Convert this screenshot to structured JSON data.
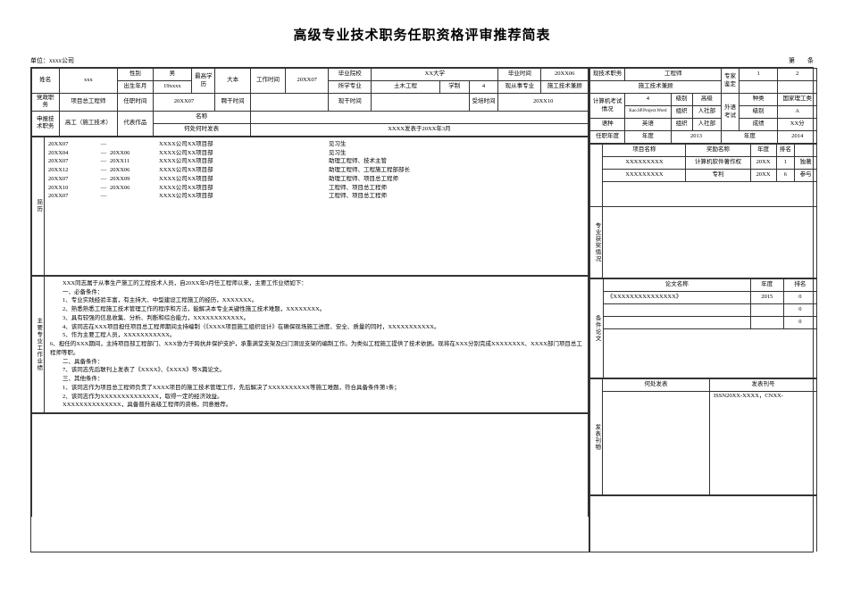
{
  "title": "高级专业技术职务任职资格评审推荐简表",
  "meta": {
    "unit_label": "单位：",
    "unit_value": "xxxx公司",
    "page_label_left": "第",
    "page_label_right": "条"
  },
  "header": {
    "name_label": "姓名",
    "name": "xxx",
    "gender_label": "性别",
    "gender": "男",
    "edu_label": "最高学历",
    "edu": "大本",
    "work_time_label": "工作时间",
    "work_time": "20XX07",
    "grad_school_label": "毕业院校",
    "grad_school": "XX大学",
    "grad_time_label": "毕业时间",
    "grad_time": "20XX06",
    "cur_title_label": "现技术职务",
    "cur_title": "工程师",
    "expert_label": "专家鉴定",
    "expert_col1": "1",
    "expert_col2": "2",
    "birth_label": "出生年月",
    "birth": "19xxxx",
    "major_label": "所学专业",
    "major": "土木工程",
    "sys_label": "学制",
    "sys": "4",
    "cur_work_label": "现从事专业",
    "cur_work": "施工技术兼顾",
    "cur_pos_label": "党政职务",
    "cur_pos": "项目总工程师",
    "appoint_label": "任职时间",
    "appoint": "20XX07",
    "hire_label": "聘干时间",
    "hire": "",
    "hire_end_label": "现干时间",
    "hire_end": "",
    "train_label": "受培时间",
    "train": "20XX10",
    "comp_exam_label": "计算机考试情况",
    "comp_exam_lev_label": "级别",
    "comp_exam_lev": "高级",
    "comp_num": "4",
    "lang_section_label": "外语考试",
    "lang_kind_label": "种类",
    "lang_kind": "国家理工类",
    "lang_lev_label": "级别",
    "lang_lev": "A",
    "apply_label": "申报技术职务",
    "apply": "高工（施工技术）",
    "rep_work_label": "代表作品",
    "rep_work_name_label": "名称",
    "rep_work_when_label": "何处何时发表",
    "rep_work_when": "XXXX发表于20XX年3月",
    "proj_label": "Kao.SP.Project.Word",
    "pass_dept_label": "组织",
    "pass_dept": "人社部",
    "lang_name_label": "语种",
    "lang_name": "英语",
    "lang_org_label": "组织",
    "lang_org": "人社部",
    "year_label": "年度",
    "year1": "2013",
    "score_label": "成绩",
    "score": "XX分",
    "year2_label": "年度",
    "year2": "2014",
    "cert_label": "任职年度"
  },
  "resume_label": "简历",
  "resume": [
    {
      "from": "20XX07",
      "to": "—",
      "dept": "XXXX公司XX项目部",
      "pos": "见习生"
    },
    {
      "from": "20XX04",
      "to": "—",
      "end": "20XX06",
      "dept": "XXXX公司XX项目部",
      "pos": "见习生"
    },
    {
      "from": "20XX07",
      "to": "—",
      "end": "20XX11",
      "dept": "XXXX公司XX项目部",
      "pos": "助理工程师、技术主管"
    },
    {
      "from": "20XX12",
      "to": "—",
      "end": "20XX06",
      "dept": "XXXX公司XX项目部",
      "pos": "助理工程师、工程施工程部部长"
    },
    {
      "from": "20XX07",
      "to": "—",
      "end": "20XX09",
      "dept": "XXXX公司XX项目部",
      "pos": "助理工程师、项目总工程师"
    },
    {
      "from": "20XX10",
      "to": "—",
      "end": "20XX06",
      "dept": "XXXX公司XX项目部",
      "pos": "工程师、项目总工程师"
    },
    {
      "from": "20XX07",
      "to": "—",
      "end": "",
      "dept": "XXXX公司XX项目部",
      "pos": "工程师、项目总工程师"
    }
  ],
  "right_projects": {
    "col_proj": "项目名称",
    "col_award": "奖励名称",
    "col_year": "年度",
    "col_rank": "排名",
    "rows": [
      {
        "proj": "XXXXXXXXX",
        "award": "计算机软件著作权",
        "year": "20XX",
        "rank": "1",
        "note": "独著"
      },
      {
        "proj": "XXXXXXXXX",
        "award": "专利",
        "year": "20XX",
        "rank": "6",
        "note": "参与"
      }
    ]
  },
  "achiev_label": "专业获奖情况",
  "assess_label": "主要专业工作业绩",
  "assess": {
    "intro": "XXX同志属于从事生产施工的工程技术人员，自20XX年9月任工程师以来，主要工作业绩如下：",
    "sec1": "一、必备条件：",
    "l1": "1、专业实践经验丰富，有主持大、中型建设工程施工的经历，XXXXXXX。",
    "l2": "2、熟悉熟悉工程施工技术管理工作的程序和方法，能解决本专业关键性施工技术难题，XXXXXXXX。",
    "l3": "3、具有较强的信息收集、分析、判断和综合能力，XXXXXXXXXXXX。",
    "l4": "4、该同志在XXX项目担任项目总工程师期间主持编制（《XXXX项目施工组织设计》在确保现场施工进度、安全、质量的同时，XXXXXXXXXXX。",
    "l5": "5、作为主要工程人员，XXXXXXXXXXX。",
    "l6": "6、担任的XXX期间，主持项目部工程部门、XXX协力于跨抗井保护支护，承重满堂支架及臼门洞设支架的编制工作。为类似工程施工提供了技术依据。现将在XXX分别完成XXXXXXXX、XXXX部门项目总工程师等职。",
    "sec2": "二、具备条件：",
    "l7": "7、该同志先后联刊上发表了《XXXX》、《XXXX》等X篇论文。",
    "sec3": "三、其他条件：",
    "l8": "1、该同志作为项目总工程师负责了XXXX项目的施工技术管理工作，先后解决了XXXXXXXXXX等施工难题，符合具备条件第1条；",
    "l9": "2、该同志作为XXXXXXXXXXXXXX，取得一定的经济效益。",
    "summary": "XXXXXXXXXXXXXX，具备晋升高级工程师的资格，同意推荐。"
  },
  "cond_label": "条件论文",
  "thesis": {
    "col_name": "论文名称",
    "col_year": "年度",
    "col_rank": "排名",
    "rows": [
      {
        "name": "《XXXXXXXXXXXXXXX》",
        "year": "2015",
        "rank": "0"
      },
      {
        "name": "",
        "year": "",
        "rank": "0"
      },
      {
        "name": "",
        "year": "",
        "rank": "0"
      }
    ]
  },
  "pub_label": "发表刊物",
  "pub": {
    "col_where": "何处发表",
    "col_issn": "发表刊号",
    "issn": "ISSN20XX-XXXX，CNXX-"
  }
}
